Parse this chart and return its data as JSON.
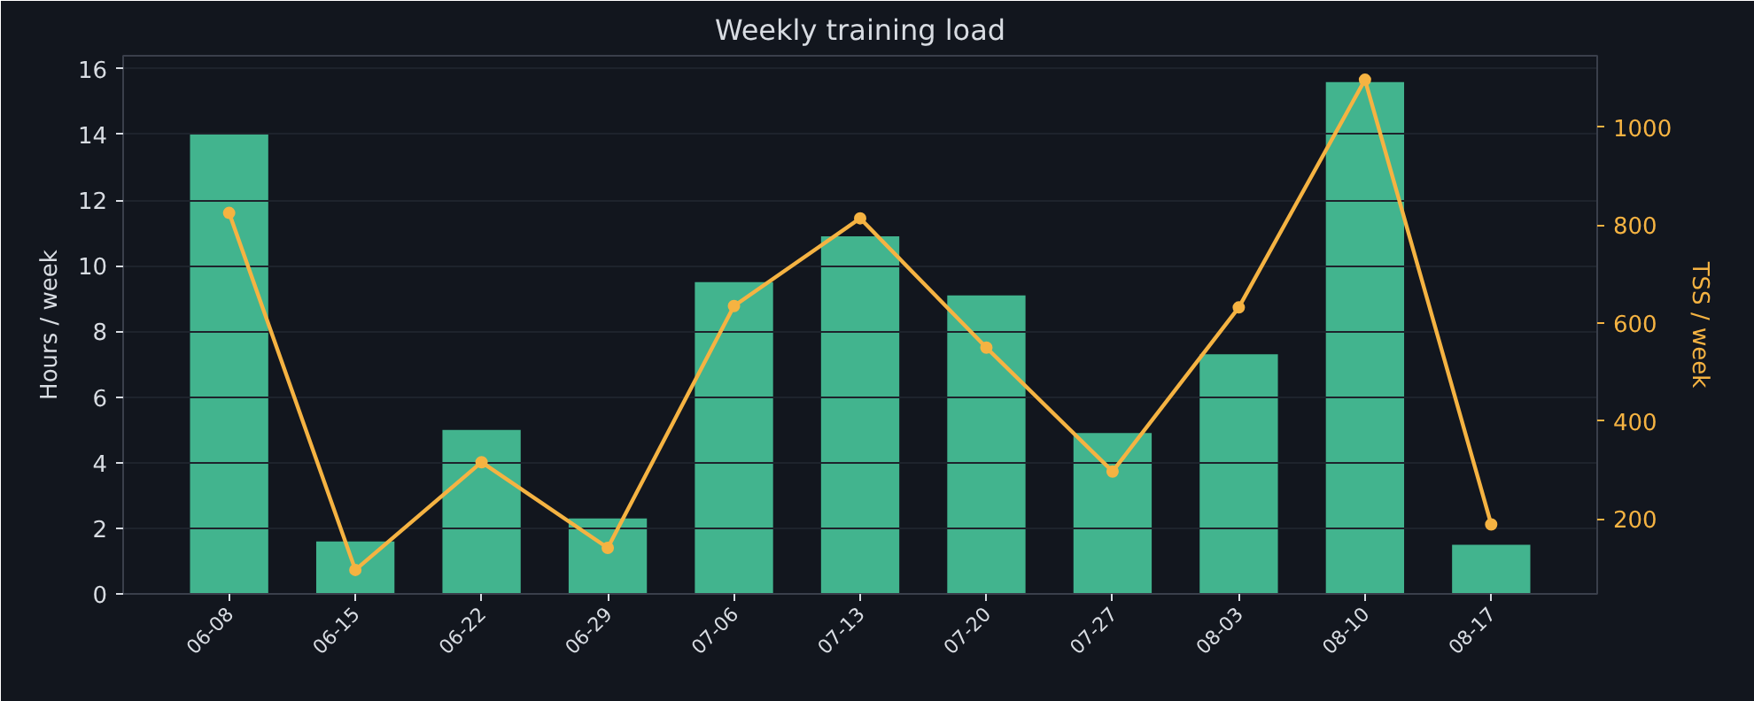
{
  "chart_data": {
    "type": "bar",
    "title": "Weekly training load",
    "ylabel": "Hours / week",
    "y2label": "TSS / week",
    "categories": [
      "06-08",
      "06-15",
      "06-22",
      "06-29",
      "07-06",
      "07-13",
      "07-20",
      "07-27",
      "08-03",
      "08-10",
      "08-17"
    ],
    "series": [
      {
        "color": "#42b48e",
        "values": [
          14.0,
          1.6,
          5.0,
          2.3,
          9.5,
          10.9,
          9.1,
          4.9,
          7.3,
          15.6,
          1.5
        ]
      },
      {
        "type": "line",
        "axis": "y2",
        "color": "#f5b342",
        "marker": "circle",
        "values": [
          825,
          96,
          316,
          141,
          635,
          814,
          550,
          297,
          632,
          1097,
          189
        ]
      }
    ],
    "ylim": [
      0,
      16.4
    ],
    "yticks": [
      0,
      2,
      4,
      6,
      8,
      10,
      12,
      14,
      16
    ],
    "y2lim": [
      47,
      1146
    ],
    "y2ticks": [
      200,
      400,
      600,
      800,
      1000
    ],
    "grid": "y"
  }
}
